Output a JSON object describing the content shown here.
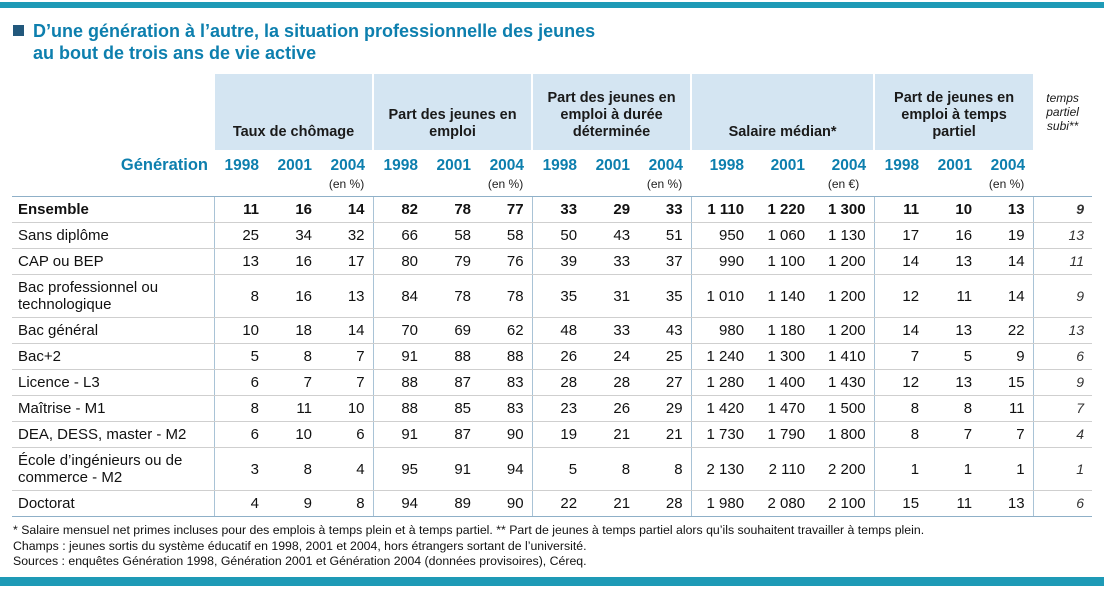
{
  "title": {
    "line1": "D’une génération à l’autre, la situation professionnelle des jeunes",
    "line2": "au bout de trois ans de vie active"
  },
  "table": {
    "corner_label": "Génération",
    "subi_header": "temps partiel subi**",
    "groups": [
      {
        "label": "Taux de chômage",
        "years": [
          "1998",
          "2001",
          "2004"
        ],
        "unit": "(en %)"
      },
      {
        "label": "Part des jeunes en emploi",
        "years": [
          "1998",
          "2001",
          "2004"
        ],
        "unit": "(en %)"
      },
      {
        "label": "Part des jeunes en emploi à durée déterminée",
        "years": [
          "1998",
          "2001",
          "2004"
        ],
        "unit": "(en %)"
      },
      {
        "label": "Salaire médian*",
        "years": [
          "1998",
          "2001",
          "2004"
        ],
        "unit": "(en €)"
      },
      {
        "label": "Part de jeunes en emploi à temps partiel",
        "years": [
          "1998",
          "2001",
          "2004"
        ],
        "unit": "(en %)"
      }
    ],
    "rows": [
      {
        "label": "Ensemble",
        "bold": true,
        "values": [
          "11",
          "16",
          "14",
          "82",
          "78",
          "77",
          "33",
          "29",
          "33",
          "1 110",
          "1 220",
          "1 300",
          "11",
          "10",
          "13"
        ],
        "subi": "9"
      },
      {
        "label": "Sans diplôme",
        "values": [
          "25",
          "34",
          "32",
          "66",
          "58",
          "58",
          "50",
          "43",
          "51",
          "950",
          "1 060",
          "1 130",
          "17",
          "16",
          "19"
        ],
        "subi": "13"
      },
      {
        "label": "CAP ou BEP",
        "values": [
          "13",
          "16",
          "17",
          "80",
          "79",
          "76",
          "39",
          "33",
          "37",
          "990",
          "1 100",
          "1 200",
          "14",
          "13",
          "14"
        ],
        "subi": "11"
      },
      {
        "label": "Bac professionnel ou technologique",
        "values": [
          "8",
          "16",
          "13",
          "84",
          "78",
          "78",
          "35",
          "31",
          "35",
          "1 010",
          "1 140",
          "1 200",
          "12",
          "11",
          "14"
        ],
        "subi": "9"
      },
      {
        "label": "Bac général",
        "values": [
          "10",
          "18",
          "14",
          "70",
          "69",
          "62",
          "48",
          "33",
          "43",
          "980",
          "1 180",
          "1 200",
          "14",
          "13",
          "22"
        ],
        "subi": "13"
      },
      {
        "label": "Bac+2",
        "values": [
          "5",
          "8",
          "7",
          "91",
          "88",
          "88",
          "26",
          "24",
          "25",
          "1 240",
          "1 300",
          "1 410",
          "7",
          "5",
          "9"
        ],
        "subi": "6"
      },
      {
        "label": "Licence - L3",
        "values": [
          "6",
          "7",
          "7",
          "88",
          "87",
          "83",
          "28",
          "28",
          "27",
          "1 280",
          "1 400",
          "1 430",
          "12",
          "13",
          "15"
        ],
        "subi": "9"
      },
      {
        "label": "Maîtrise - M1",
        "values": [
          "8",
          "11",
          "10",
          "88",
          "85",
          "83",
          "23",
          "26",
          "29",
          "1 420",
          "1 470",
          "1 500",
          "8",
          "8",
          "11"
        ],
        "subi": "7"
      },
      {
        "label": "DEA, DESS, master - M2",
        "values": [
          "6",
          "10",
          "6",
          "91",
          "87",
          "90",
          "19",
          "21",
          "21",
          "1 730",
          "1 790",
          "1 800",
          "8",
          "7",
          "7"
        ],
        "subi": "4"
      },
      {
        "label": "École d’ingénieurs ou de commerce - M2",
        "values": [
          "3",
          "8",
          "4",
          "95",
          "91",
          "94",
          "5",
          "8",
          "8",
          "2 130",
          "2 110",
          "2 200",
          "1",
          "1",
          "1"
        ],
        "subi": "1"
      },
      {
        "label": "Doctorat",
        "values": [
          "4",
          "9",
          "8",
          "94",
          "89",
          "90",
          "22",
          "21",
          "28",
          "1 980",
          "2 080",
          "2 100",
          "15",
          "11",
          "13"
        ],
        "subi": "6"
      }
    ]
  },
  "footnotes": [
    "* Salaire mensuel net primes incluses pour des emplois à temps plein et à temps partiel. ** Part de jeunes à temps partiel alors qu’ils souhaitent travailler à temps plein.",
    "Champs : jeunes sortis du système éducatif en 1998, 2001 et 2004, hors étrangers sortant de l’université.",
    "Sources : enquêtes Génération 1998, Génération 2001 et Génération 2004 (données provisoires), Céreq."
  ],
  "colors": {
    "rule_teal": "#1e9ab6",
    "title_blue": "#0d7fae",
    "header_band_blue": "#d4e5f2",
    "separator_blue": "#a9c3d6"
  }
}
